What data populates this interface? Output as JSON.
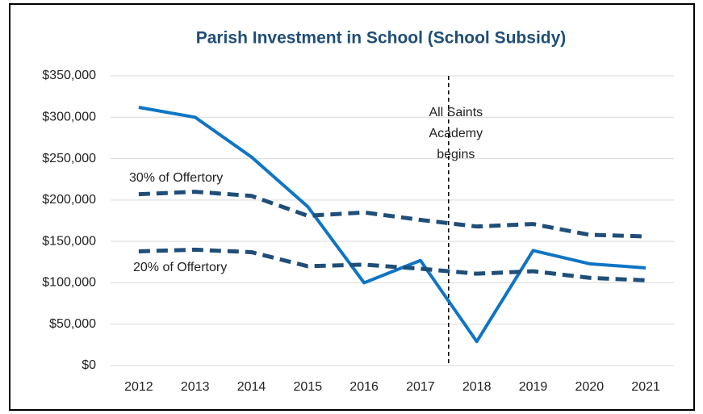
{
  "chart_data": {
    "type": "line",
    "title": "Parish Investment in School (School Subsidy)",
    "categories": [
      "2012",
      "2013",
      "2014",
      "2015",
      "2016",
      "2017",
      "2018",
      "2019",
      "2020",
      "2021"
    ],
    "series": [
      {
        "color": "#0e75c5",
        "dash": false,
        "values": [
          312000,
          300000,
          252000,
          192000,
          100000,
          127000,
          29000,
          139000,
          123000,
          118000
        ]
      },
      {
        "name": "30% of Offertory",
        "color": "#1f4e79",
        "dash": true,
        "values": [
          207000,
          210000,
          205000,
          181000,
          185000,
          176000,
          168000,
          171000,
          158000,
          156000
        ]
      },
      {
        "name": "20% of Offertory",
        "color": "#1f4e79",
        "dash": true,
        "values": [
          138000,
          140000,
          137000,
          120000,
          122000,
          117000,
          111000,
          114000,
          106000,
          103000
        ]
      }
    ],
    "annotations": [
      {
        "lines": [
          "All Saints",
          "Academy",
          "begins"
        ]
      }
    ],
    "ylim": [
      0,
      350000
    ],
    "yticks": [
      {
        "value": 0,
        "label": "$0"
      },
      {
        "value": 50000,
        "label": "$50,000"
      },
      {
        "value": 100000,
        "label": "$100,000"
      },
      {
        "value": 150000,
        "label": "$150,000"
      },
      {
        "value": 200000,
        "label": "$200,000"
      },
      {
        "value": 250000,
        "label": "$250,000"
      },
      {
        "value": 300000,
        "label": "$300,000"
      },
      {
        "value": 350000,
        "label": "$350,000"
      }
    ],
    "grid": true
  }
}
